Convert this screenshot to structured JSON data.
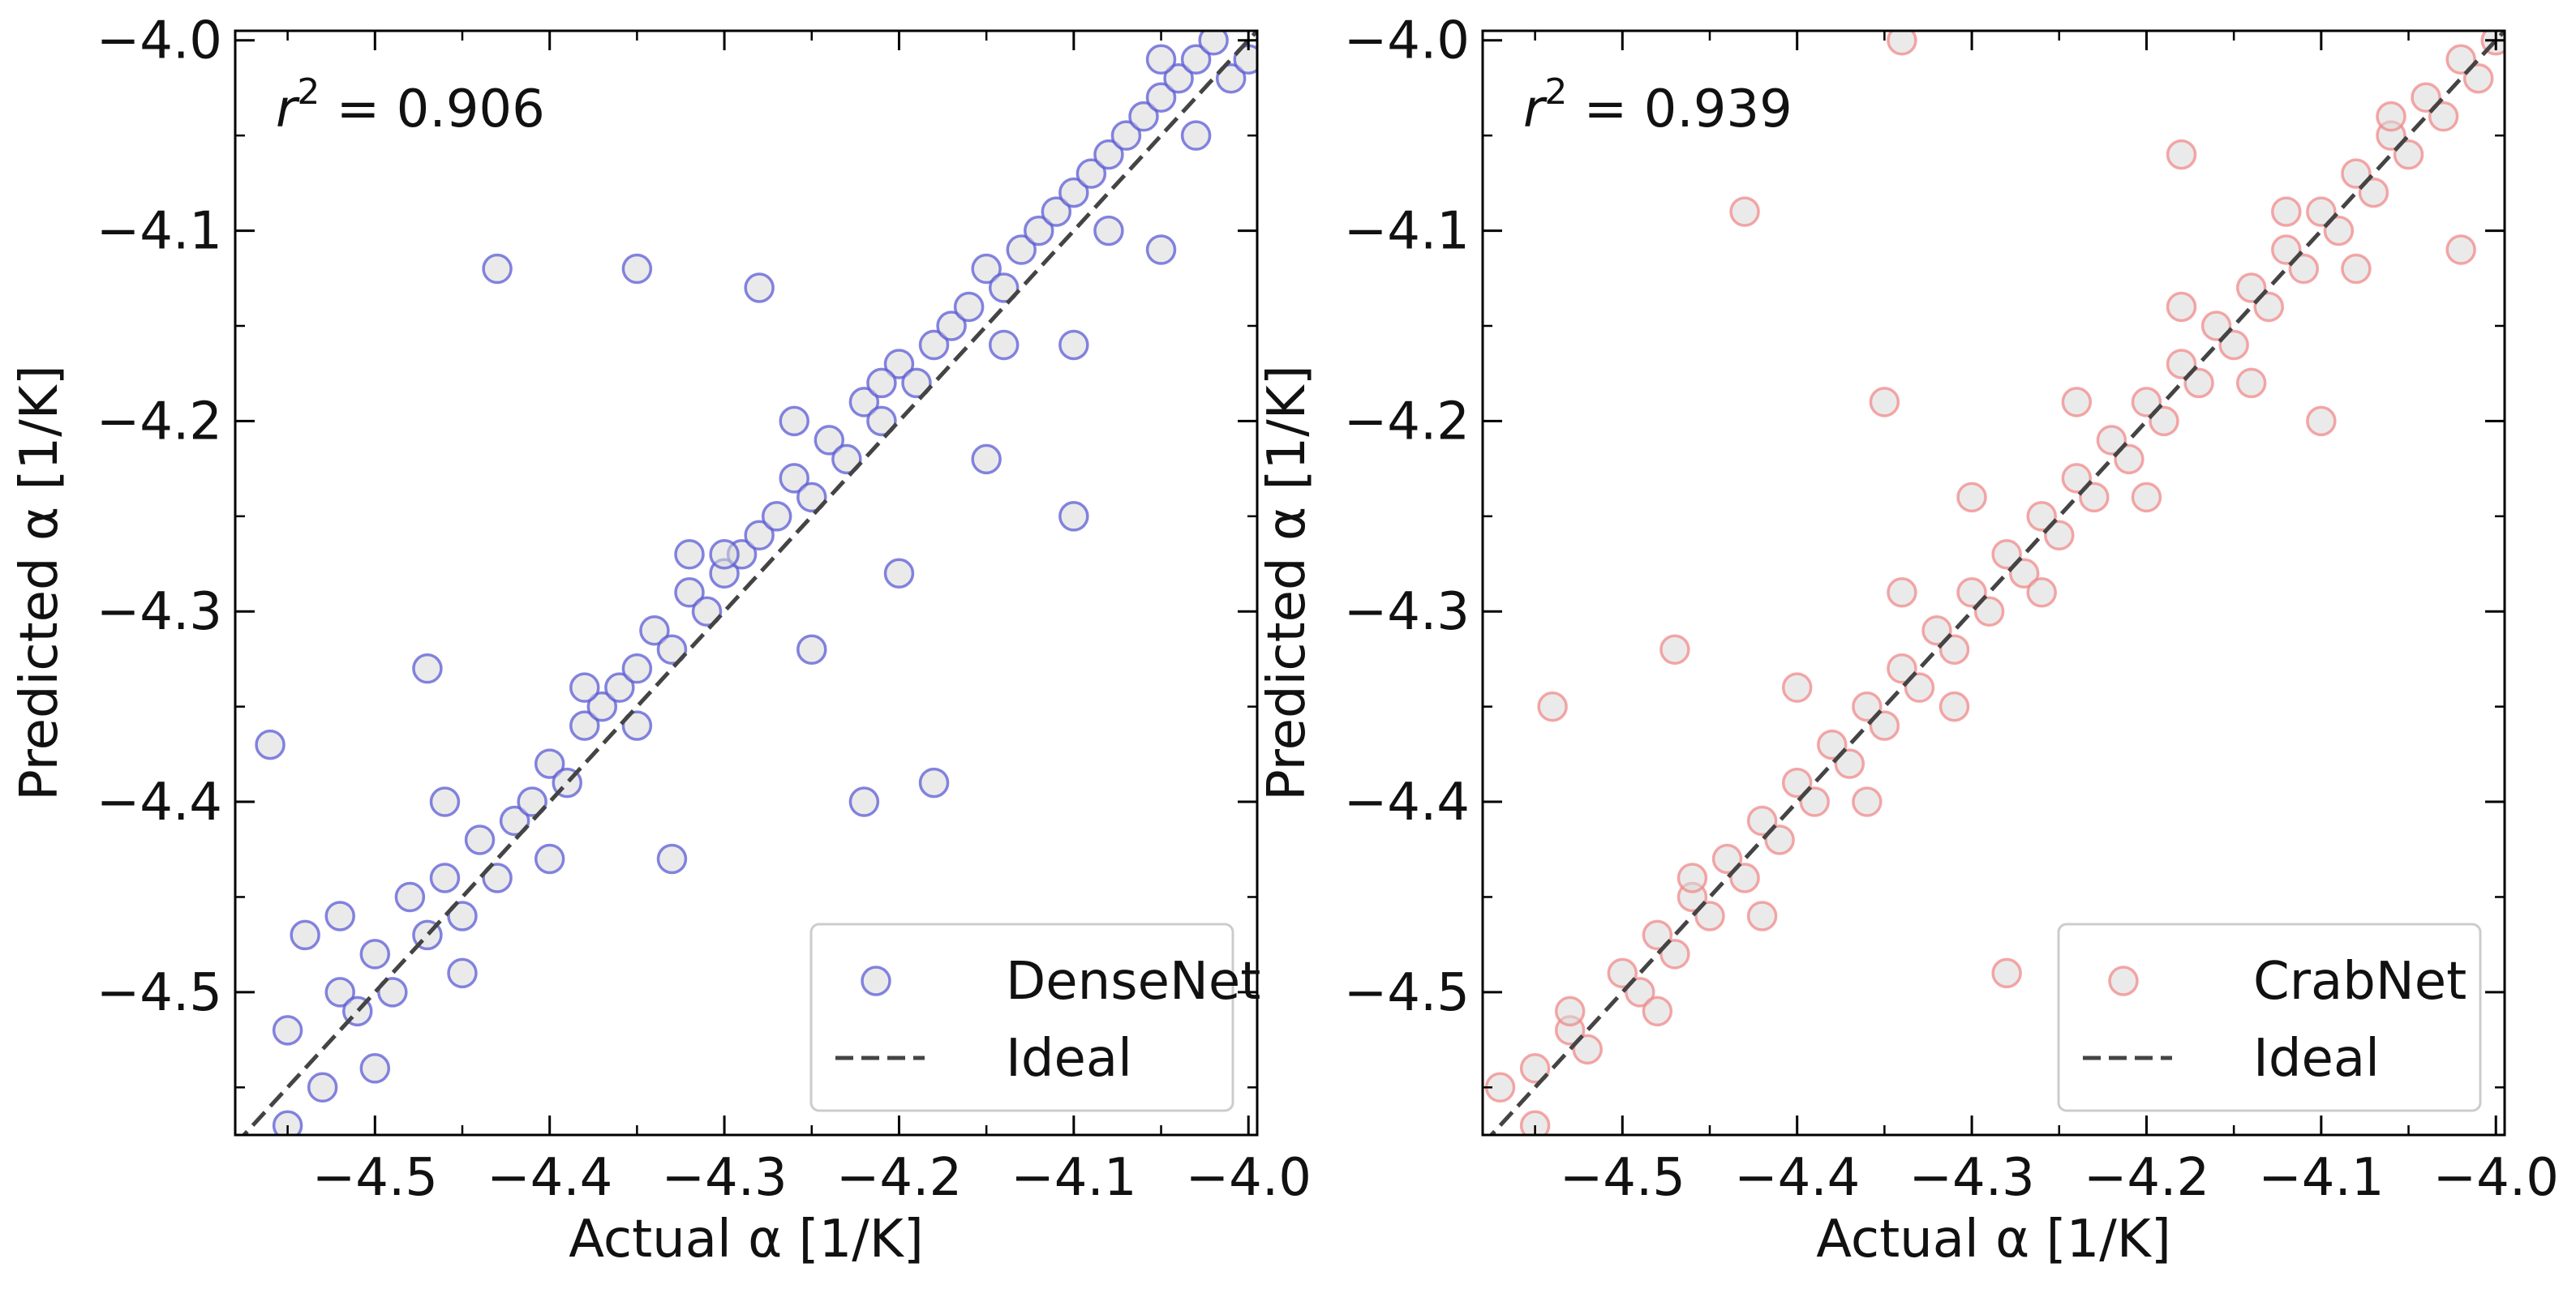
{
  "chart_data": [
    {
      "type": "scatter",
      "xlabel": "Actual α [1/K]",
      "ylabel": "Predicted α [1/K]",
      "xlim": [
        -4.58,
        -3.995
      ],
      "ylim": [
        -4.575,
        -3.995
      ],
      "xticks": [
        "−4.5",
        "−4.4",
        "−4.3",
        "−4.2",
        "−4.1",
        "−4.0"
      ],
      "yticks": [
        "−4.5",
        "−4.4",
        "−4.3",
        "−4.2",
        "−4.1",
        "−4.0"
      ],
      "annotation": {
        "prefix": "r",
        "superscript": "2",
        "text": " = 0.906"
      },
      "legend_position": "bottom-right",
      "series": [
        {
          "name": "DenseNet",
          "marker": "hollow-circle",
          "edge_color": "#5b5bd6",
          "face_color": "#d9d9d9",
          "x": [
            -4.55,
            -4.53,
            -4.52,
            -4.51,
            -4.5,
            -4.49,
            -4.48,
            -4.47,
            -4.46,
            -4.45,
            -4.44,
            -4.43,
            -4.42,
            -4.41,
            -4.4,
            -4.39,
            -4.38,
            -4.37,
            -4.36,
            -4.35,
            -4.34,
            -4.33,
            -4.32,
            -4.31,
            -4.3,
            -4.29,
            -4.28,
            -4.27,
            -4.26,
            -4.25,
            -4.24,
            -4.23,
            -4.22,
            -4.21,
            -4.2,
            -4.19,
            -4.18,
            -4.17,
            -4.16,
            -4.15,
            -4.14,
            -4.13,
            -4.12,
            -4.11,
            -4.1,
            -4.09,
            -4.08,
            -4.07,
            -4.06,
            -4.05,
            -4.04,
            -4.03,
            -4.02,
            -4.01,
            -4.0,
            -4.56,
            -4.54,
            -4.47,
            -4.43,
            -4.35,
            -4.33,
            -4.28,
            -4.22,
            -4.18,
            -4.1,
            -4.05,
            -4.55,
            -4.5,
            -4.45,
            -4.4,
            -4.35,
            -4.3,
            -4.25,
            -4.2,
            -4.15,
            -4.1,
            -4.05,
            -4.52,
            -4.46,
            -4.38,
            -4.32,
            -4.26,
            -4.21,
            -4.14,
            -4.08,
            -4.03
          ],
          "y": [
            -4.52,
            -4.55,
            -4.5,
            -4.51,
            -4.48,
            -4.5,
            -4.45,
            -4.47,
            -4.44,
            -4.46,
            -4.42,
            -4.44,
            -4.41,
            -4.4,
            -4.38,
            -4.39,
            -4.36,
            -4.35,
            -4.34,
            -4.33,
            -4.31,
            -4.32,
            -4.29,
            -4.3,
            -4.28,
            -4.27,
            -4.26,
            -4.25,
            -4.23,
            -4.24,
            -4.21,
            -4.22,
            -4.19,
            -4.2,
            -4.17,
            -4.18,
            -4.16,
            -4.15,
            -4.14,
            -4.12,
            -4.13,
            -4.11,
            -4.1,
            -4.09,
            -4.08,
            -4.07,
            -4.06,
            -4.05,
            -4.04,
            -4.03,
            -4.02,
            -4.01,
            -4.0,
            -4.02,
            -4.01,
            -4.37,
            -4.47,
            -4.33,
            -4.12,
            -4.12,
            -4.43,
            -4.13,
            -4.4,
            -4.39,
            -4.25,
            -4.01,
            -4.57,
            -4.54,
            -4.49,
            -4.43,
            -4.36,
            -4.27,
            -4.32,
            -4.28,
            -4.22,
            -4.16,
            -4.11,
            -4.46,
            -4.4,
            -4.34,
            -4.27,
            -4.2,
            -4.18,
            -4.16,
            -4.1,
            -4.05
          ]
        },
        {
          "name": "Ideal",
          "type": "line",
          "style": "dashed",
          "color": "#444444",
          "x": [
            -4.58,
            -3.995
          ],
          "y": [
            -4.58,
            -3.995
          ]
        }
      ]
    },
    {
      "type": "scatter",
      "xlabel": "Actual α [1/K]",
      "ylabel": "Predicted α [1/K]",
      "xlim": [
        -4.58,
        -3.995
      ],
      "ylim": [
        -4.575,
        -3.995
      ],
      "xticks": [
        "−4.5",
        "−4.4",
        "−4.3",
        "−4.2",
        "−4.1",
        "−4.0"
      ],
      "yticks": [
        "−4.5",
        "−4.4",
        "−4.3",
        "−4.2",
        "−4.1",
        "−4.0"
      ],
      "annotation": {
        "prefix": "r",
        "superscript": "2",
        "text": " = 0.939"
      },
      "legend_position": "bottom-right",
      "series": [
        {
          "name": "CrabNet",
          "marker": "hollow-circle",
          "edge_color": "#f08a8a",
          "face_color": "#d9d9d9",
          "x": [
            -4.57,
            -4.55,
            -4.53,
            -4.52,
            -4.5,
            -4.49,
            -4.48,
            -4.47,
            -4.46,
            -4.45,
            -4.44,
            -4.43,
            -4.42,
            -4.41,
            -4.4,
            -4.39,
            -4.38,
            -4.37,
            -4.36,
            -4.35,
            -4.34,
            -4.33,
            -4.32,
            -4.31,
            -4.3,
            -4.29,
            -4.28,
            -4.27,
            -4.26,
            -4.25,
            -4.24,
            -4.23,
            -4.22,
            -4.21,
            -4.2,
            -4.19,
            -4.18,
            -4.17,
            -4.16,
            -4.15,
            -4.14,
            -4.13,
            -4.12,
            -4.11,
            -4.1,
            -4.09,
            -4.08,
            -4.07,
            -4.06,
            -4.05,
            -4.04,
            -4.03,
            -4.02,
            -4.01,
            -4.0,
            -4.54,
            -4.47,
            -4.43,
            -4.35,
            -4.34,
            -4.28,
            -4.18,
            -4.1,
            -4.02,
            -4.53,
            -4.46,
            -4.4,
            -4.34,
            -4.3,
            -4.24,
            -4.18,
            -4.12,
            -4.06,
            -4.55,
            -4.48,
            -4.42,
            -4.36,
            -4.31,
            -4.26,
            -4.2,
            -4.14,
            -4.08
          ],
          "y": [
            -4.55,
            -4.54,
            -4.52,
            -4.53,
            -4.49,
            -4.5,
            -4.47,
            -4.48,
            -4.45,
            -4.46,
            -4.43,
            -4.44,
            -4.41,
            -4.42,
            -4.39,
            -4.4,
            -4.37,
            -4.38,
            -4.35,
            -4.36,
            -4.33,
            -4.34,
            -4.31,
            -4.32,
            -4.29,
            -4.3,
            -4.27,
            -4.28,
            -4.25,
            -4.26,
            -4.23,
            -4.24,
            -4.21,
            -4.22,
            -4.19,
            -4.2,
            -4.17,
            -4.18,
            -4.15,
            -4.16,
            -4.13,
            -4.14,
            -4.11,
            -4.12,
            -4.09,
            -4.1,
            -4.07,
            -4.08,
            -4.05,
            -4.06,
            -4.03,
            -4.04,
            -4.01,
            -4.02,
            -4.0,
            -4.35,
            -4.32,
            -4.09,
            -4.19,
            -4.0,
            -4.49,
            -4.06,
            -4.2,
            -4.11,
            -4.51,
            -4.44,
            -4.34,
            -4.29,
            -4.24,
            -4.19,
            -4.14,
            -4.09,
            -4.04,
            -4.57,
            -4.51,
            -4.46,
            -4.4,
            -4.35,
            -4.29,
            -4.24,
            -4.18,
            -4.12
          ]
        },
        {
          "name": "Ideal",
          "type": "line",
          "style": "dashed",
          "color": "#444444",
          "x": [
            -4.58,
            -3.995
          ],
          "y": [
            -4.58,
            -3.995
          ]
        }
      ]
    }
  ]
}
